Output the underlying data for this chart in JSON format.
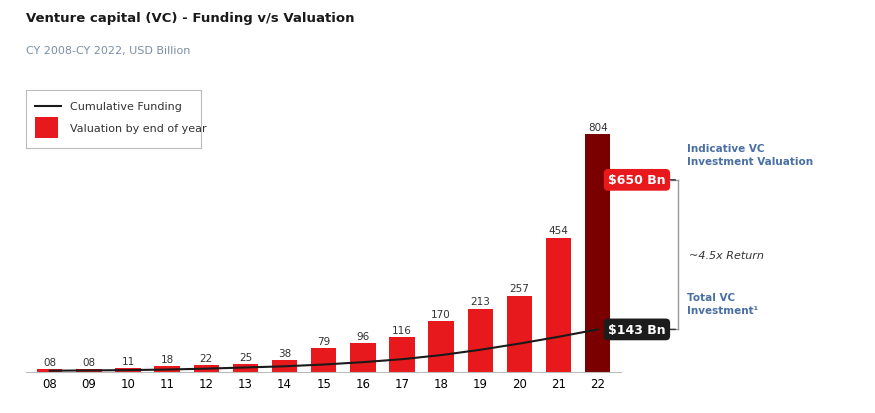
{
  "title": "Venture capital (VC) - Funding v/s Valuation",
  "subtitle": "CY 2008-CY 2022, USD Billion",
  "categories": [
    "08",
    "09",
    "10",
    "11",
    "12",
    "13",
    "14",
    "15",
    "16",
    "17",
    "18",
    "19",
    "20",
    "21",
    "22"
  ],
  "bar_values": [
    8,
    8,
    11,
    18,
    22,
    25,
    38,
    79,
    96,
    116,
    170,
    213,
    257,
    454,
    804
  ],
  "bar_labels": [
    "08",
    "08",
    "11",
    "18",
    "22",
    "25",
    "38",
    "79",
    "96",
    "116",
    "170",
    "213",
    "257",
    "454",
    "804"
  ],
  "line_values": [
    3,
    4,
    5,
    7,
    10,
    14,
    18,
    24,
    32,
    42,
    56,
    74,
    95,
    118,
    143
  ],
  "bar_color_red": "#e8191c",
  "bar_color_dark": "#7a0000",
  "line_color": "#1a1a1a",
  "background_color": "#ffffff",
  "title_color": "#1a1a1a",
  "subtitle_color": "#7b8fa6",
  "annotation_color_blue": "#4a6fa5",
  "ylim": [
    0,
    870
  ],
  "figsize": [
    8.75,
    4.14
  ],
  "dpi": 100
}
